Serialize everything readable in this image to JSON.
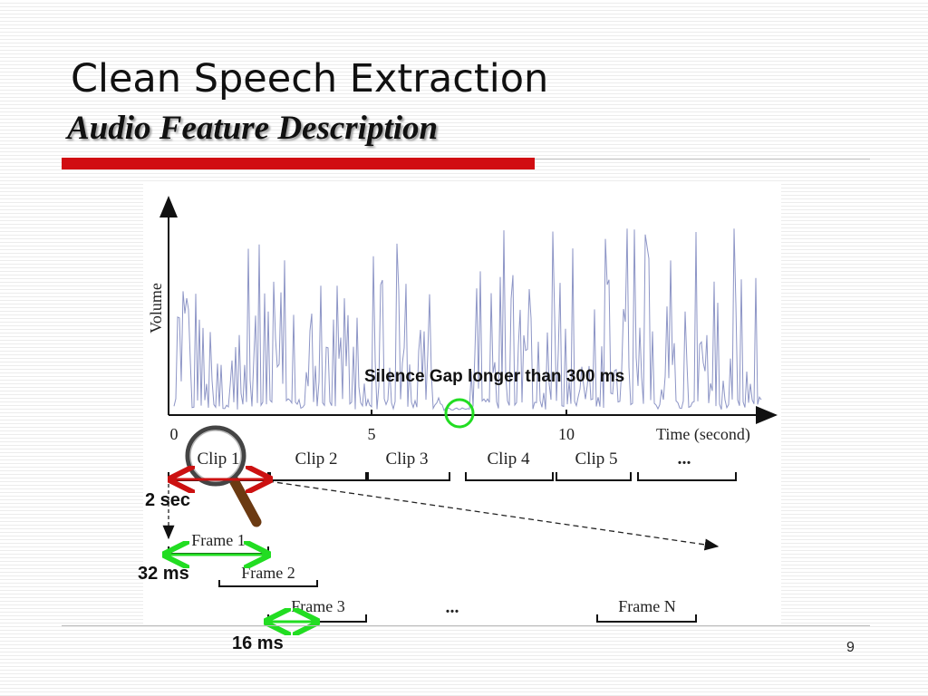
{
  "slide": {
    "title": "Clean Speech Extraction",
    "subtitle": "Audio Feature Description",
    "page_number": "9"
  },
  "figure": {
    "y_axis_label": "Volume",
    "x_axis_label": "Time (second)",
    "x_ticks": [
      "0",
      "5",
      "10"
    ],
    "clips": [
      "Clip 1",
      "Clip 2",
      "Clip 3",
      "Clip 4",
      "Clip 5",
      "..."
    ],
    "frames": [
      "Frame 1",
      "Frame 2",
      "Frame 3",
      "...",
      "Frame N"
    ]
  },
  "annotations": {
    "silence_gap": "Silence Gap longer than 300 ms",
    "clip_length": "2 sec",
    "frame_length": "32 ms",
    "frame_shift": "16 ms"
  },
  "colors": {
    "accent_red": "#d10d12",
    "arrow_red": "#cc1111",
    "arrow_green": "#22dd22",
    "waveform": "#8d95c6",
    "magnifier_handle": "#6b3a12"
  },
  "icons": [
    "magnifier-icon"
  ]
}
